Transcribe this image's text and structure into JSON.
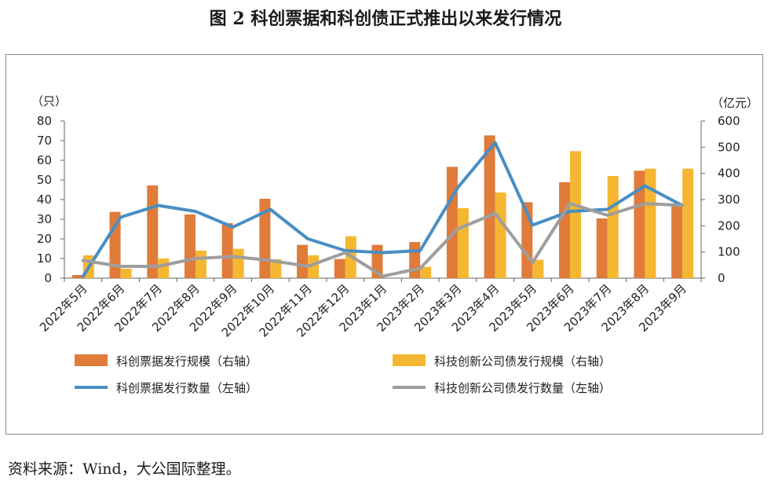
{
  "figure_title": "图 2  科创票据和科创债正式推出以来发行情况",
  "source": "资料来源：Wind，大公国际整理。",
  "colors": {
    "bar_a": "#E07B39",
    "bar_b": "#F5B731",
    "line_a": "#4A8EC2",
    "line_b": "#9E9E9E"
  },
  "chart_data": {
    "type": "bar",
    "categories": [
      "2022年5月",
      "2022年6月",
      "2022年7月",
      "2022年8月",
      "2022年9月",
      "2022年10月",
      "2022年11月",
      "2022年12月",
      "2023年1月",
      "2023年2月",
      "2023年3月",
      "2023年4月",
      "2023年5月",
      "2023年6月",
      "2023年7月",
      "2023年8月",
      "2023年9月"
    ],
    "left_axis": {
      "unit": "（只）",
      "ylim": [
        0,
        80
      ],
      "ticks": [
        0,
        10,
        20,
        30,
        40,
        50,
        60,
        70,
        80
      ]
    },
    "right_axis": {
      "unit": "（亿元）",
      "ylim": [
        0,
        600
      ],
      "ticks": [
        0,
        100,
        200,
        300,
        400,
        500,
        600
      ]
    },
    "series": [
      {
        "name": "科创票据发行规模（右轴）",
        "kind": "bar",
        "axis": "right",
        "values": [
          12,
          253,
          354,
          243,
          210,
          303,
          127,
          73,
          127,
          138,
          425,
          545,
          290,
          366,
          228,
          410,
          286
        ]
      },
      {
        "name": "科技创新公司债发行规模（右轴）",
        "kind": "bar",
        "axis": "right",
        "values": [
          87,
          36,
          75,
          105,
          112,
          72,
          87,
          160,
          0,
          43,
          267,
          327,
          70,
          485,
          390,
          418,
          418
        ]
      },
      {
        "name": "科创票据发行数量（左轴）",
        "kind": "line",
        "axis": "left",
        "values": [
          1,
          31,
          37,
          34,
          26,
          35,
          20,
          14,
          13,
          14,
          46,
          69,
          27,
          34,
          35,
          47,
          37
        ]
      },
      {
        "name": "科技创新公司债发行数量（左轴）",
        "kind": "line",
        "axis": "left",
        "values": [
          9,
          6,
          6,
          10,
          11,
          9,
          6,
          13,
          1,
          5,
          25,
          33,
          8,
          38,
          32,
          38,
          37
        ]
      }
    ],
    "legend_position": "bottom",
    "grid": false
  }
}
